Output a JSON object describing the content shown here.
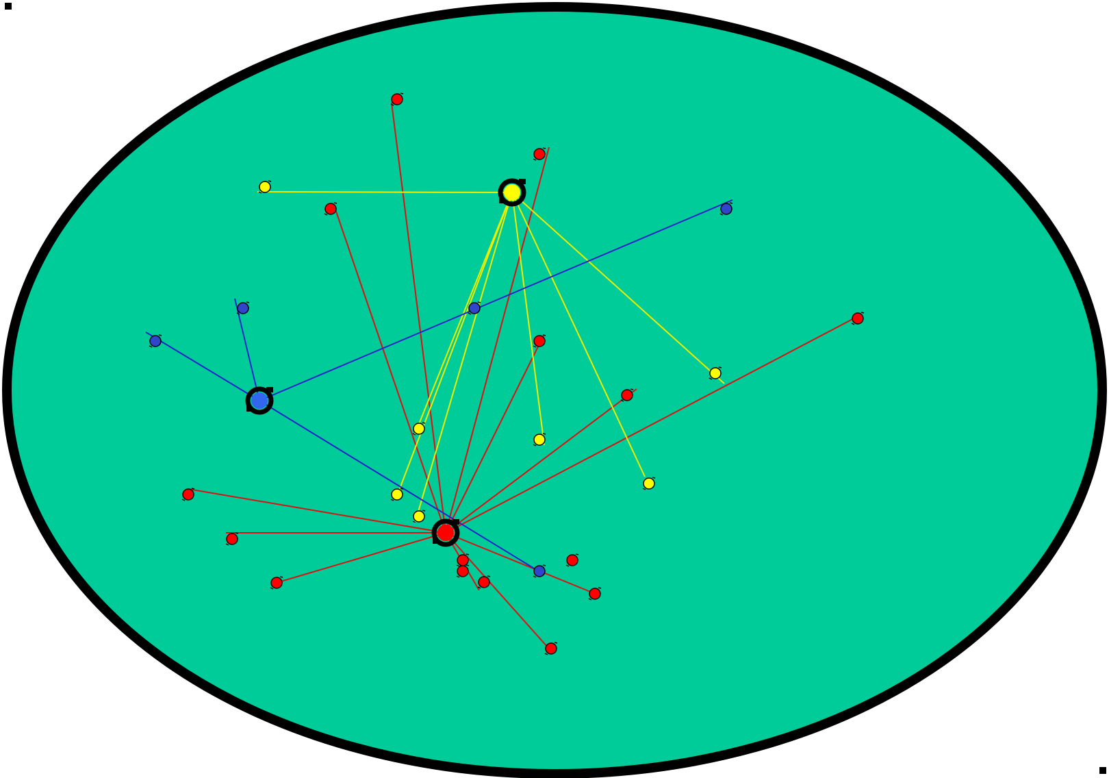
{
  "colors": {
    "background": "#ffffff",
    "board_fill": "#00cc99",
    "board_outline": "#000000",
    "red": "#ff0000",
    "red_link": "#dd1111",
    "yellow": "#ffff00",
    "yellow_link": "#eeee00",
    "blue": "#3344cc",
    "blue_hub": "#3366ee",
    "blue_link": "#2222cc",
    "node_outline": "#000000"
  },
  "groups": [
    {
      "id": "red",
      "hub": {
        "color": "red",
        "size": "large"
      },
      "member_count": 16,
      "linked_count": 12
    },
    {
      "id": "yellow",
      "hub": {
        "color": "yellow",
        "size": "large"
      },
      "member_count": 7,
      "linked_count": 7
    },
    {
      "id": "blue",
      "hub": {
        "color": "blue",
        "size": "large"
      },
      "member_count": 5,
      "linked_count": 4
    }
  ],
  "node_marker_icon": "small-black-tick-icon",
  "hub_marker_icon": "black-ring-icon",
  "corner_marker_icon": "black-square-icon"
}
